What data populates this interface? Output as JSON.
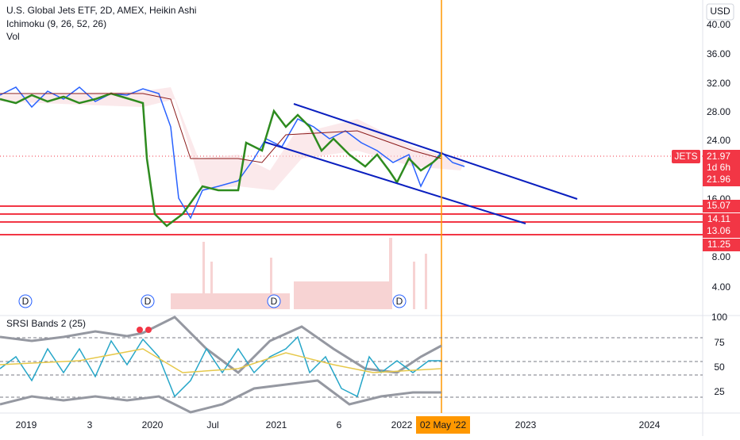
{
  "header": {
    "title": "U.S. Global Jets ETF, 2D, AMEX, Heikin Ashi",
    "indicator": "Ichimoku (9, 26, 52, 26)",
    "volume": "Vol",
    "currency": "USD"
  },
  "price_axis": [
    "40.00",
    "36.00",
    "32.00",
    "28.00",
    "24.00",
    "16.00",
    "8.00",
    "4.00"
  ],
  "price_tags": {
    "symbol": "JETS",
    "last": "21.97",
    "countdown": "1d 6h",
    "prev": "21.96",
    "levels": [
      "15.07",
      "14.11",
      "13.06",
      "11.25"
    ]
  },
  "dividend_marker": "D",
  "oscillator": {
    "title": "SRSI Bands 2 (25)",
    "axis": [
      "100",
      "75",
      "50",
      "25"
    ]
  },
  "time_axis": [
    "2019",
    "3",
    "2020",
    "Jul",
    "2021",
    "6",
    "2022",
    "2023",
    "2024"
  ],
  "cursor_date": "02 May '22"
}
